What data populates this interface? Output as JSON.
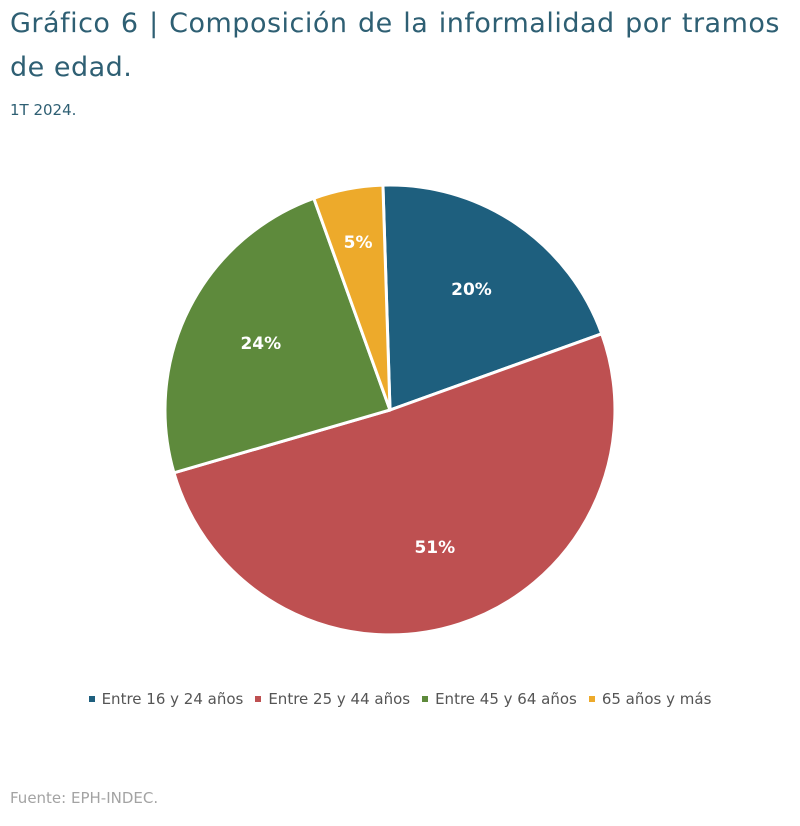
{
  "header": {
    "title": "Gráfico 6 | Composición de la informalidad por tramos de edad.",
    "subtitle": "1T 2024."
  },
  "footer": {
    "source": "Fuente: EPH-INDEC."
  },
  "chart_data": {
    "type": "pie",
    "title": "Gráfico 6 | Composición de la informalidad por tramos de edad.",
    "subtitle": "1T 2024.",
    "legend_position": "bottom",
    "start_angle": "12 o'clock",
    "direction": "clockwise",
    "slices": [
      {
        "name": "Entre 16 y 24 años",
        "value": 20,
        "label": "20%",
        "color": "#1e5f7e"
      },
      {
        "name": "Entre 25 y 44 años",
        "value": 51,
        "label": "51%",
        "color": "#be5051"
      },
      {
        "name": "Entre 45 y 64 años",
        "value": 24,
        "label": "24%",
        "color": "#5e8a3c"
      },
      {
        "name": "65 años y más",
        "value": 5,
        "label": "5%",
        "color": "#edaa2b"
      }
    ]
  }
}
